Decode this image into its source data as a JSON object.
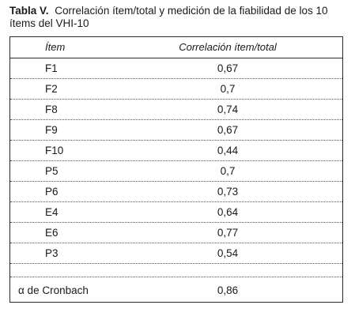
{
  "caption": {
    "tag": "Tabla V.",
    "text": "Correlación ítem/total y medición de la fiabilidad de los 10 ítems del VHI-10"
  },
  "table": {
    "headers": [
      "Ítem",
      "Correlación ítem/total"
    ],
    "rows": [
      {
        "item": "F1",
        "value": "0,67"
      },
      {
        "item": "F2",
        "value": "0,7"
      },
      {
        "item": "F8",
        "value": "0,74"
      },
      {
        "item": "F9",
        "value": "0,67"
      },
      {
        "item": "F10",
        "value": "0,44"
      },
      {
        "item": "P5",
        "value": "0,7"
      },
      {
        "item": "P6",
        "value": "0,73"
      },
      {
        "item": "E4",
        "value": "0,64"
      },
      {
        "item": "E6",
        "value": "0,77"
      },
      {
        "item": "P3",
        "value": "0,54"
      }
    ],
    "footer": {
      "item": "α de Cronbach",
      "value": "0,86"
    }
  }
}
